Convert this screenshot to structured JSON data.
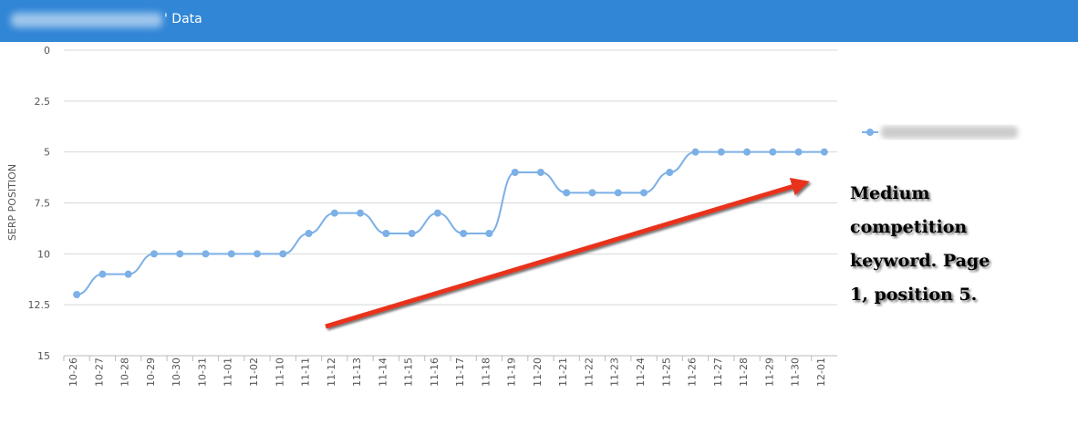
{
  "header": {
    "title": "' Data"
  },
  "chart_data": {
    "type": "line",
    "y_label": "SERP POSITION",
    "categories": [
      "10-26",
      "10-27",
      "10-28",
      "10-29",
      "10-30",
      "10-31",
      "11-01",
      "11-02",
      "11-10",
      "11-11",
      "11-12",
      "11-13",
      "11-14",
      "11-15",
      "11-16",
      "11-17",
      "11-18",
      "11-19",
      "11-20",
      "11-21",
      "11-22",
      "11-23",
      "11-24",
      "11-25",
      "11-26",
      "11-27",
      "11-28",
      "11-29",
      "11-30",
      "12-01"
    ],
    "series": [
      {
        "color": "#7cb0e6",
        "values": [
          12,
          11,
          11,
          10,
          10,
          10,
          10,
          10,
          10,
          9,
          8,
          8,
          9,
          9,
          8,
          9,
          9,
          6,
          6,
          7,
          7,
          7,
          7,
          6,
          5,
          5,
          5,
          5,
          5,
          5
        ]
      }
    ],
    "ylim": [
      0,
      15
    ],
    "y_reversed": true,
    "yticks": [
      0,
      2.5,
      5,
      7.5,
      10,
      12.5,
      15
    ],
    "grid": true,
    "annotation": [
      "Medium",
      "competition",
      "keyword. Page",
      "1, position 5."
    ],
    "arrow_color": "#e8321e"
  }
}
